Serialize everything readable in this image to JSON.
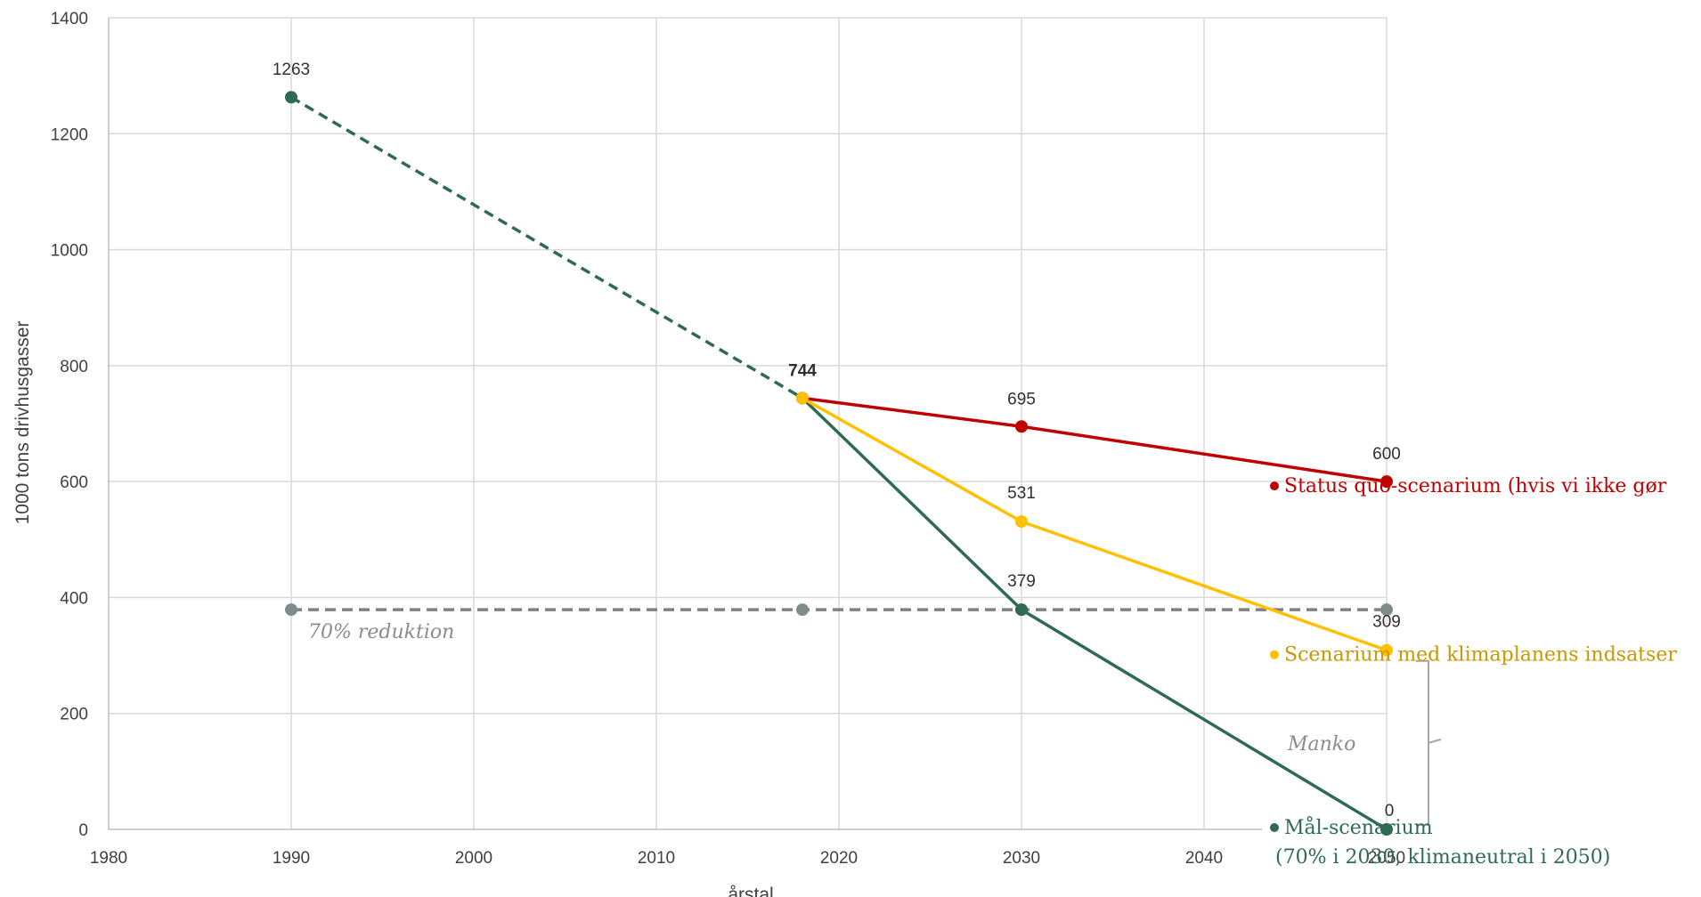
{
  "chart_data": {
    "type": "line",
    "title": "",
    "xlabel": "årstal",
    "ylabel": "1000 tons drivhusgasser",
    "xlim": [
      1980,
      2050
    ],
    "ylim": [
      0,
      1400
    ],
    "x_ticks": [
      "1980",
      "1990",
      "2000",
      "2010",
      "2020",
      "2030",
      "2040",
      "2050"
    ],
    "y_ticks": [
      "0",
      "200",
      "400",
      "600",
      "800",
      "1000",
      "1200",
      "1400"
    ],
    "grid": true,
    "legend_position": "right",
    "series": [
      {
        "name": "Mål-scenarium (70% i 2030, klimaneutral i 2050)",
        "legend_line1": "Mål-scenarium",
        "legend_line2": "(70% i 2030, klimaneutral i 2050)",
        "color": "#2e6b50",
        "points": [
          {
            "x": 1990,
            "y": 1263,
            "label": "1263"
          },
          {
            "x": 2018,
            "y": 744,
            "label": "744"
          },
          {
            "x": 2030,
            "y": 379,
            "label": "379"
          },
          {
            "x": 2050,
            "y": 0,
            "label": "0"
          }
        ]
      },
      {
        "name": "Status quo-scenarium (hvis vi ikke gør",
        "legend_line1": "Status quo-scenarium (hvis vi ikke gør",
        "color": "#c00000",
        "points": [
          {
            "x": 2018,
            "y": 744,
            "label": ""
          },
          {
            "x": 2030,
            "y": 695,
            "label": "695"
          },
          {
            "x": 2050,
            "y": 600,
            "label": "600"
          }
        ]
      },
      {
        "name": "Scenarium med klimaplanens indsatser",
        "legend_line1": "Scenarium med klimaplanens indsatser",
        "color": "#ffc000",
        "points": [
          {
            "x": 2018,
            "y": 744,
            "label": ""
          },
          {
            "x": 2030,
            "y": 531,
            "label": "531"
          },
          {
            "x": 2050,
            "y": 309,
            "label": "309"
          }
        ]
      },
      {
        "name": "70% reduktion",
        "color": "#808080",
        "points": [
          {
            "x": 1990,
            "y": 379
          },
          {
            "x": 2018,
            "y": 379
          },
          {
            "x": 2030,
            "y": 379
          },
          {
            "x": 2050,
            "y": 379
          }
        ]
      }
    ],
    "annotations": {
      "reduction_label": "70% reduktion",
      "gap_label": "Manko",
      "gap_range": [
        0,
        309
      ]
    }
  }
}
